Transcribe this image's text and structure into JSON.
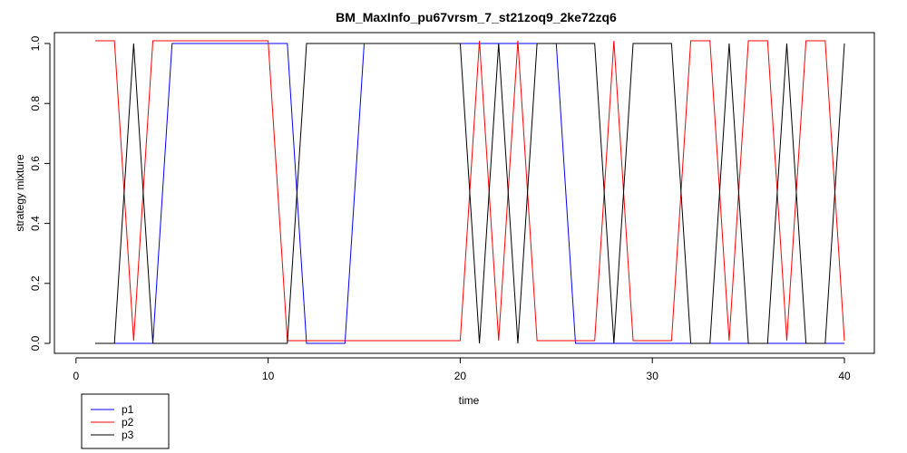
{
  "chart_data": {
    "type": "line",
    "title": "BM_MaxInfo_pu67vrsm_7_st21zoq9_2ke72zq6",
    "xlabel": "time",
    "ylabel": "strategy mixture",
    "xlim": [
      1,
      40
    ],
    "ylim": [
      0,
      1
    ],
    "x_ticks": [
      0,
      10,
      20,
      30,
      40
    ],
    "y_ticks": [
      0.0,
      0.2,
      0.4,
      0.6,
      0.8,
      1.0
    ],
    "x_tick_labels": [
      "0",
      "10",
      "20",
      "30",
      "40"
    ],
    "y_tick_labels": [
      "0.0",
      "0.2",
      "0.4",
      "0.6",
      "0.8",
      "1.0"
    ],
    "grid": false,
    "legend_position": "bottom-left, outside plot",
    "x": [
      1,
      2,
      3,
      4,
      5,
      6,
      7,
      8,
      9,
      10,
      11,
      12,
      13,
      14,
      15,
      16,
      17,
      18,
      19,
      20,
      21,
      22,
      23,
      24,
      25,
      26,
      27,
      28,
      29,
      30,
      31,
      32,
      33,
      34,
      35,
      36,
      37,
      38,
      39,
      40
    ],
    "series": [
      {
        "name": "p1",
        "color": "#0000ff",
        "values": [
          0,
          0,
          0,
          0,
          1,
          1,
          1,
          1,
          1,
          1,
          1,
          0,
          0,
          0,
          1,
          1,
          1,
          1,
          1,
          1,
          1,
          1,
          1,
          1,
          1,
          0,
          0,
          0,
          0,
          0,
          0,
          0,
          0,
          0,
          0,
          0,
          0,
          0,
          0,
          0
        ]
      },
      {
        "name": "p2",
        "color": "#ff0000",
        "values": [
          1,
          1,
          0,
          1,
          1,
          1,
          1,
          1,
          1,
          1,
          0,
          0,
          0,
          0,
          0,
          0,
          0,
          0,
          0,
          0,
          1,
          0,
          1,
          0,
          0,
          0,
          0,
          1,
          0,
          0,
          0,
          1,
          1,
          0,
          1,
          1,
          0,
          1,
          1,
          0
        ]
      },
      {
        "name": "p3",
        "color": "#000000",
        "values": [
          0,
          0,
          1,
          0,
          0,
          0,
          0,
          0,
          0,
          0,
          0,
          1,
          1,
          1,
          1,
          1,
          1,
          1,
          1,
          1,
          0,
          1,
          0,
          1,
          1,
          1,
          1,
          0,
          1,
          1,
          1,
          0,
          0,
          1,
          0,
          0,
          1,
          0,
          0,
          1
        ]
      }
    ]
  }
}
